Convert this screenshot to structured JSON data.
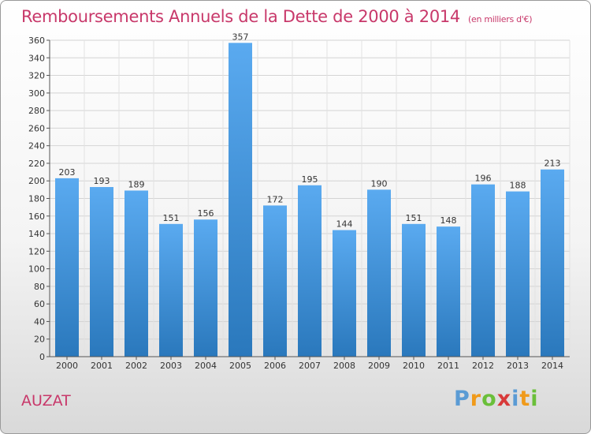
{
  "title": {
    "main": "Remboursements Annuels de la Dette de 2000 à 2014",
    "unit": "(en milliers d'€)"
  },
  "commune": "AUZAT",
  "logo": {
    "letters": [
      "P",
      "r",
      "o",
      "x",
      "i",
      "t",
      "i"
    ],
    "colors": [
      "#5a9bd4",
      "#f09a1a",
      "#6abf3a",
      "#d83a3a",
      "#5a9bd4",
      "#f09a1a",
      "#6abf3a"
    ]
  },
  "colors": {
    "bar_top": "#5aaaf0",
    "bar_bottom": "#2a78bc",
    "text": "#333333",
    "accent": "#c8386a"
  },
  "chart_data": {
    "type": "bar",
    "title": "Remboursements Annuels de la Dette de 2000 à 2014",
    "xlabel": "",
    "ylabel": "",
    "categories": [
      "2000",
      "2001",
      "2002",
      "2003",
      "2004",
      "2005",
      "2006",
      "2007",
      "2008",
      "2009",
      "2010",
      "2011",
      "2012",
      "2013",
      "2014"
    ],
    "values": [
      203,
      193,
      189,
      151,
      156,
      357,
      172,
      195,
      144,
      190,
      151,
      148,
      196,
      188,
      213
    ],
    "ylim": [
      0,
      360
    ],
    "yticks": [
      0,
      20,
      40,
      60,
      80,
      100,
      120,
      140,
      160,
      180,
      200,
      220,
      240,
      260,
      280,
      300,
      320,
      340,
      360
    ],
    "grid": true,
    "data_labels": true
  }
}
